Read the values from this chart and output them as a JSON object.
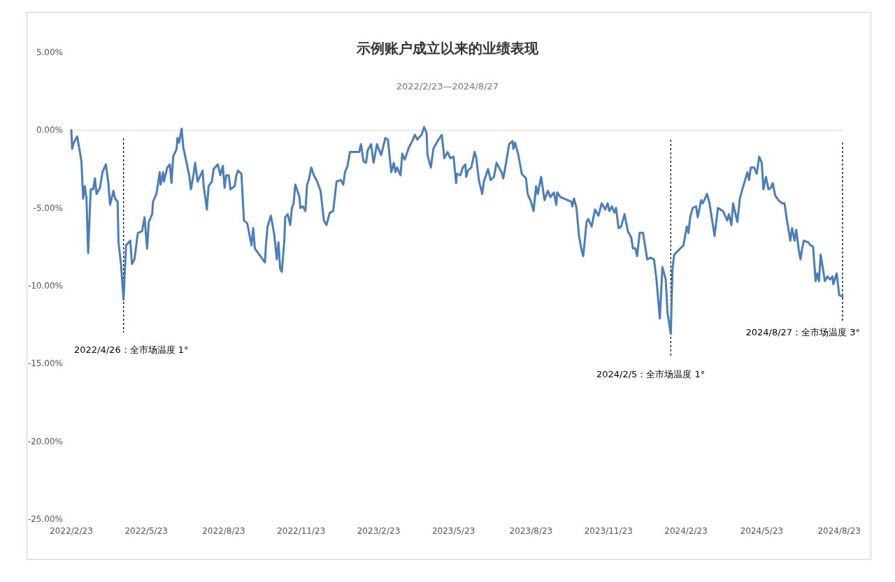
{
  "chart_data": {
    "type": "line",
    "title": "示例账户成立以来的业绩表现",
    "subtitle": "2022/2/23—2024/8/27",
    "xlim": [
      "2022-02-23",
      "2024-08-27"
    ],
    "xticks": [
      {
        "value": "2022-02-23",
        "label": "2022/2/23"
      },
      {
        "value": "2022-05-23",
        "label": "2022/5/23"
      },
      {
        "value": "2022-08-23",
        "label": "2022/8/23"
      },
      {
        "value": "2022-11-23",
        "label": "2022/11/23"
      },
      {
        "value": "2023-02-23",
        "label": "2023/2/23"
      },
      {
        "value": "2023-05-23",
        "label": "2023/5/23"
      },
      {
        "value": "2023-08-23",
        "label": "2023/8/23"
      },
      {
        "value": "2023-11-23",
        "label": "2023/11/23"
      },
      {
        "value": "2024-02-23",
        "label": "2024/2/23"
      },
      {
        "value": "2024-05-23",
        "label": "2024/5/23"
      },
      {
        "value": "2024-08-23",
        "label": "2024/8/23"
      }
    ],
    "ylim": [
      -25,
      5
    ],
    "yticks": [
      {
        "value": -25,
        "label": "-25.00%"
      },
      {
        "value": -20,
        "label": "-20.00%"
      },
      {
        "value": -15,
        "label": "-15.00%"
      },
      {
        "value": -10,
        "label": "-10.00%"
      },
      {
        "value": -5,
        "label": "-5.00%"
      },
      {
        "value": 0,
        "label": "0.00%"
      },
      {
        "value": 5,
        "label": "5.00%"
      }
    ],
    "grid": false,
    "marker": "none",
    "line_style": "solid",
    "ref_lines": [
      {
        "axis": "y",
        "value": 0,
        "color": "#d9d9d9",
        "line_style": "solid"
      },
      {
        "axis": "x",
        "value": "2022-04-26",
        "label": "2022/4/26：全市场温度 1°",
        "color": "#000000",
        "line_style": "dashed"
      },
      {
        "axis": "x",
        "value": "2024-02-05",
        "label": "2024/2/5：全市场温度 1°",
        "color": "#000000",
        "line_style": "dashed"
      },
      {
        "axis": "x",
        "value": "2024-08-27",
        "label": "2024/8/27：全市场温度 3°",
        "color": "#000000",
        "line_style": "dashed"
      }
    ],
    "series": [
      {
        "color": "#4a7ebb",
        "x": [
          "2022-02-23",
          "2022-02-24",
          "2022-02-26",
          "2022-03-02",
          "2022-03-07",
          "2022-03-09",
          "2022-03-11",
          "2022-03-13",
          "2022-03-15",
          "2022-03-18",
          "2022-03-21",
          "2022-03-23",
          "2022-03-25",
          "2022-03-29",
          "2022-04-01",
          "2022-04-05",
          "2022-04-08",
          "2022-04-10",
          "2022-04-14",
          "2022-04-16",
          "2022-04-19",
          "2022-04-20",
          "2022-04-23",
          "2022-04-26",
          "2022-04-29",
          "2022-05-04",
          "2022-05-06",
          "2022-05-09",
          "2022-05-13",
          "2022-05-18",
          "2022-05-21",
          "2022-05-24",
          "2022-05-26",
          "2022-05-30",
          "2022-05-31",
          "2022-06-04",
          "2022-06-08",
          "2022-06-09",
          "2022-06-12",
          "2022-06-13",
          "2022-06-17",
          "2022-06-20",
          "2022-06-22",
          "2022-06-24",
          "2022-06-28",
          "2022-06-29",
          "2022-07-01",
          "2022-07-04",
          "2022-07-06",
          "2022-07-13",
          "2022-07-15",
          "2022-07-18",
          "2022-07-20",
          "2022-07-23",
          "2022-07-29",
          "2022-07-30",
          "2022-08-03",
          "2022-08-05",
          "2022-08-09",
          "2022-08-11",
          "2022-08-16",
          "2022-08-19",
          "2022-08-22",
          "2022-08-24",
          "2022-08-26",
          "2022-08-29",
          "2022-08-31",
          "2022-09-05",
          "2022-09-07",
          "2022-09-09",
          "2022-09-13",
          "2022-09-16",
          "2022-09-20",
          "2022-09-25",
          "2022-09-27",
          "2022-09-29",
          "2022-10-11",
          "2022-10-12",
          "2022-10-14",
          "2022-10-18",
          "2022-10-22",
          "2022-10-25",
          "2022-10-27",
          "2022-10-29",
          "2022-10-31",
          "2022-11-03",
          "2022-11-04",
          "2022-11-07",
          "2022-11-10",
          "2022-11-12",
          "2022-11-14",
          "2022-11-16",
          "2022-11-21",
          "2022-11-22",
          "2022-11-25",
          "2022-11-28",
          "2022-11-30",
          "2022-12-02",
          "2022-12-05",
          "2022-12-08",
          "2022-12-12",
          "2022-12-16",
          "2022-12-20",
          "2022-12-23",
          "2022-12-27",
          "2022-12-31",
          "2023-01-04",
          "2023-01-09",
          "2023-01-12",
          "2023-01-14",
          "2023-01-17",
          "2023-01-20",
          "2023-01-31",
          "2023-02-02",
          "2023-02-05",
          "2023-02-08",
          "2023-02-10",
          "2023-02-14",
          "2023-02-17",
          "2023-02-21",
          "2023-02-26",
          "2023-03-03",
          "2023-03-06",
          "2023-03-10",
          "2023-03-13",
          "2023-03-15",
          "2023-03-17",
          "2023-03-21",
          "2023-03-23",
          "2023-03-26",
          "2023-03-31",
          "2023-04-04",
          "2023-04-07",
          "2023-04-10",
          "2023-04-13",
          "2023-04-15",
          "2023-04-18",
          "2023-04-21",
          "2023-04-22",
          "2023-04-26",
          "2023-04-29",
          "2023-05-04",
          "2023-05-09",
          "2023-05-12",
          "2023-05-16",
          "2023-05-19",
          "2023-05-23",
          "2023-05-26",
          "2023-05-27",
          "2023-05-31",
          "2023-06-03",
          "2023-06-06",
          "2023-06-07",
          "2023-06-09",
          "2023-06-13",
          "2023-06-17",
          "2023-06-19",
          "2023-06-22",
          "2023-06-26",
          "2023-06-28",
          "2023-07-03",
          "2023-07-06",
          "2023-07-10",
          "2023-07-13",
          "2023-07-19",
          "2023-07-21",
          "2023-07-25",
          "2023-07-28",
          "2023-08-01",
          "2023-08-02",
          "2023-08-04",
          "2023-08-08",
          "2023-08-12",
          "2023-08-17",
          "2023-08-19",
          "2023-08-23",
          "2023-08-26",
          "2023-08-29",
          "2023-08-31",
          "2023-09-04",
          "2023-09-08",
          "2023-09-12",
          "2023-09-15",
          "2023-09-19",
          "2023-09-22",
          "2023-09-23",
          "2023-09-27",
          "2023-10-10",
          "2023-10-11",
          "2023-10-13",
          "2023-10-16",
          "2023-10-19",
          "2023-10-22",
          "2023-10-24",
          "2023-10-28",
          "2023-10-30",
          "2023-11-03",
          "2023-11-07",
          "2023-11-11",
          "2023-11-15",
          "2023-11-19",
          "2023-11-22",
          "2023-11-24",
          "2023-11-27",
          "2023-11-30",
          "2023-12-02",
          "2023-12-05",
          "2023-12-08",
          "2023-12-12",
          "2023-12-16",
          "2023-12-20",
          "2023-12-22",
          "2023-12-25",
          "2023-12-27",
          "2023-12-30",
          "2024-01-03",
          "2024-01-08",
          "2024-01-12",
          "2024-01-16",
          "2024-01-19",
          "2024-01-23",
          "2024-01-26",
          "2024-01-30",
          "2024-02-01",
          "2024-02-05",
          "2024-02-07",
          "2024-02-09",
          "2024-02-20",
          "2024-02-24",
          "2024-02-26",
          "2024-02-28",
          "2024-03-02",
          "2024-03-06",
          "2024-03-08",
          "2024-03-12",
          "2024-03-14",
          "2024-03-19",
          "2024-03-22",
          "2024-03-28",
          "2024-04-01",
          "2024-04-07",
          "2024-04-12",
          "2024-04-14",
          "2024-04-17",
          "2024-04-19",
          "2024-04-24",
          "2024-04-27",
          "2024-04-30",
          "2024-05-06",
          "2024-05-08",
          "2024-05-10",
          "2024-05-14",
          "2024-05-17",
          "2024-05-20",
          "2024-05-23",
          "2024-05-25",
          "2024-05-28",
          "2024-05-31",
          "2024-06-03",
          "2024-06-05",
          "2024-06-08",
          "2024-06-12",
          "2024-06-16",
          "2024-06-19",
          "2024-06-22",
          "2024-06-26",
          "2024-06-28",
          "2024-07-01",
          "2024-07-03",
          "2024-07-06",
          "2024-07-08",
          "2024-07-10",
          "2024-07-12",
          "2024-07-17",
          "2024-07-20",
          "2024-07-23",
          "2024-07-26",
          "2024-07-28",
          "2024-07-30",
          "2024-08-01",
          "2024-08-06",
          "2024-08-09",
          "2024-08-12",
          "2024-08-15",
          "2024-08-16",
          "2024-08-20",
          "2024-08-23",
          "2024-08-27"
        ],
        "values": [
          0.0,
          -1.2,
          -0.8,
          -0.4,
          -2.0,
          -4.4,
          -3.6,
          -4.4,
          -7.9,
          -3.8,
          -3.8,
          -3.1,
          -4.1,
          -3.7,
          -2.7,
          -2.2,
          -3.4,
          -4.8,
          -3.9,
          -4.4,
          -4.6,
          -7.2,
          -8.6,
          -10.9,
          -7.4,
          -7.1,
          -8.6,
          -8.3,
          -6.6,
          -6.5,
          -5.6,
          -7.6,
          -5.9,
          -5.4,
          -4.6,
          -4.1,
          -2.7,
          -3.5,
          -2.7,
          -3.3,
          -2.4,
          -2.2,
          -3.4,
          -1.7,
          -1.2,
          -0.5,
          -0.8,
          0.1,
          -1.1,
          -2.9,
          -3.8,
          -2.9,
          -2.1,
          -3.3,
          -2.6,
          -3.5,
          -5.1,
          -3.6,
          -3.3,
          -2.5,
          -2.2,
          -2.9,
          -2.3,
          -3.7,
          -2.9,
          -2.9,
          -3.8,
          -3.6,
          -2.9,
          -2.6,
          -2.8,
          -5.8,
          -6.0,
          -7.4,
          -6.3,
          -7.6,
          -8.5,
          -7.5,
          -6.2,
          -5.5,
          -6.7,
          -8.3,
          -7.2,
          -8.9,
          -9.1,
          -7.1,
          -5.6,
          -5.4,
          -6.1,
          -5.0,
          -4.7,
          -3.5,
          -4.3,
          -5.0,
          -4.9,
          -5.2,
          -3.5,
          -3.2,
          -2.4,
          -2.9,
          -3.3,
          -3.9,
          -5.8,
          -6.1,
          -5.3,
          -5.2,
          -3.3,
          -3.2,
          -3.5,
          -2.7,
          -2.3,
          -1.4,
          -1.4,
          -0.9,
          -2.0,
          -2.1,
          -1.3,
          -0.9,
          -2.1,
          -0.9,
          -1.6,
          -0.5,
          -0.6,
          -2.7,
          -2.1,
          -2.7,
          -2.4,
          -2.9,
          -1.5,
          -1.9,
          -1.1,
          -0.7,
          -0.3,
          -0.6,
          -0.4,
          -0.3,
          0.2,
          -0.2,
          -1.6,
          -2.4,
          -1.2,
          -0.7,
          -0.3,
          -1.8,
          -1.4,
          -1.8,
          -1.7,
          -3.4,
          -2.8,
          -2.9,
          -2.4,
          -2.2,
          -3.0,
          -2.6,
          -2.4,
          -1.4,
          -1.8,
          -3.2,
          -4.1,
          -3.3,
          -2.5,
          -3.2,
          -3.0,
          -2.1,
          -2.7,
          -3.1,
          -1.9,
          -0.9,
          -0.7,
          -1.2,
          -0.8,
          -1.6,
          -2.8,
          -3.1,
          -4.1,
          -4.6,
          -5.2,
          -3.6,
          -4.1,
          -3.0,
          -4.5,
          -3.9,
          -4.3,
          -4.0,
          -4.8,
          -4.0,
          -4.3,
          -4.6,
          -4.9,
          -4.4,
          -5.0,
          -6.8,
          -7.7,
          -8.1,
          -5.9,
          -5.7,
          -6.2,
          -5.1,
          -5.5,
          -4.7,
          -5.1,
          -4.7,
          -5.2,
          -4.9,
          -5.3,
          -5.0,
          -6.3,
          -6.2,
          -5.4,
          -6.5,
          -6.9,
          -7.6,
          -7.6,
          -8.1,
          -6.6,
          -6.6,
          -8.3,
          -8.2,
          -8.3,
          -9.6,
          -12.1,
          -8.8,
          -9.6,
          -11.7,
          -13.1,
          -8.9,
          -8.0,
          -7.4,
          -6.2,
          -6.6,
          -5.6,
          -5.0,
          -4.9,
          -5.6,
          -4.5,
          -4.7,
          -4.1,
          -4.7,
          -6.8,
          -5.0,
          -5.2,
          -5.8,
          -5.4,
          -6.1,
          -4.7,
          -5.9,
          -4.4,
          -3.8,
          -2.7,
          -3.2,
          -2.4,
          -2.4,
          -2.8,
          -1.7,
          -2.1,
          -3.8,
          -3.0,
          -3.8,
          -3.7,
          -3.4,
          -4.2,
          -4.5,
          -4.7,
          -4.7,
          -5.8,
          -7.1,
          -6.3,
          -7.1,
          -6.4,
          -7.7,
          -8.3,
          -7.6,
          -7.1,
          -7.2,
          -7.4,
          -7.5,
          -9.7,
          -9.2,
          -9.7,
          -8.0,
          -9.7,
          -9.4,
          -9.6,
          -9.4,
          -9.9,
          -9.2,
          -10.6,
          -10.7
        ]
      }
    ]
  }
}
